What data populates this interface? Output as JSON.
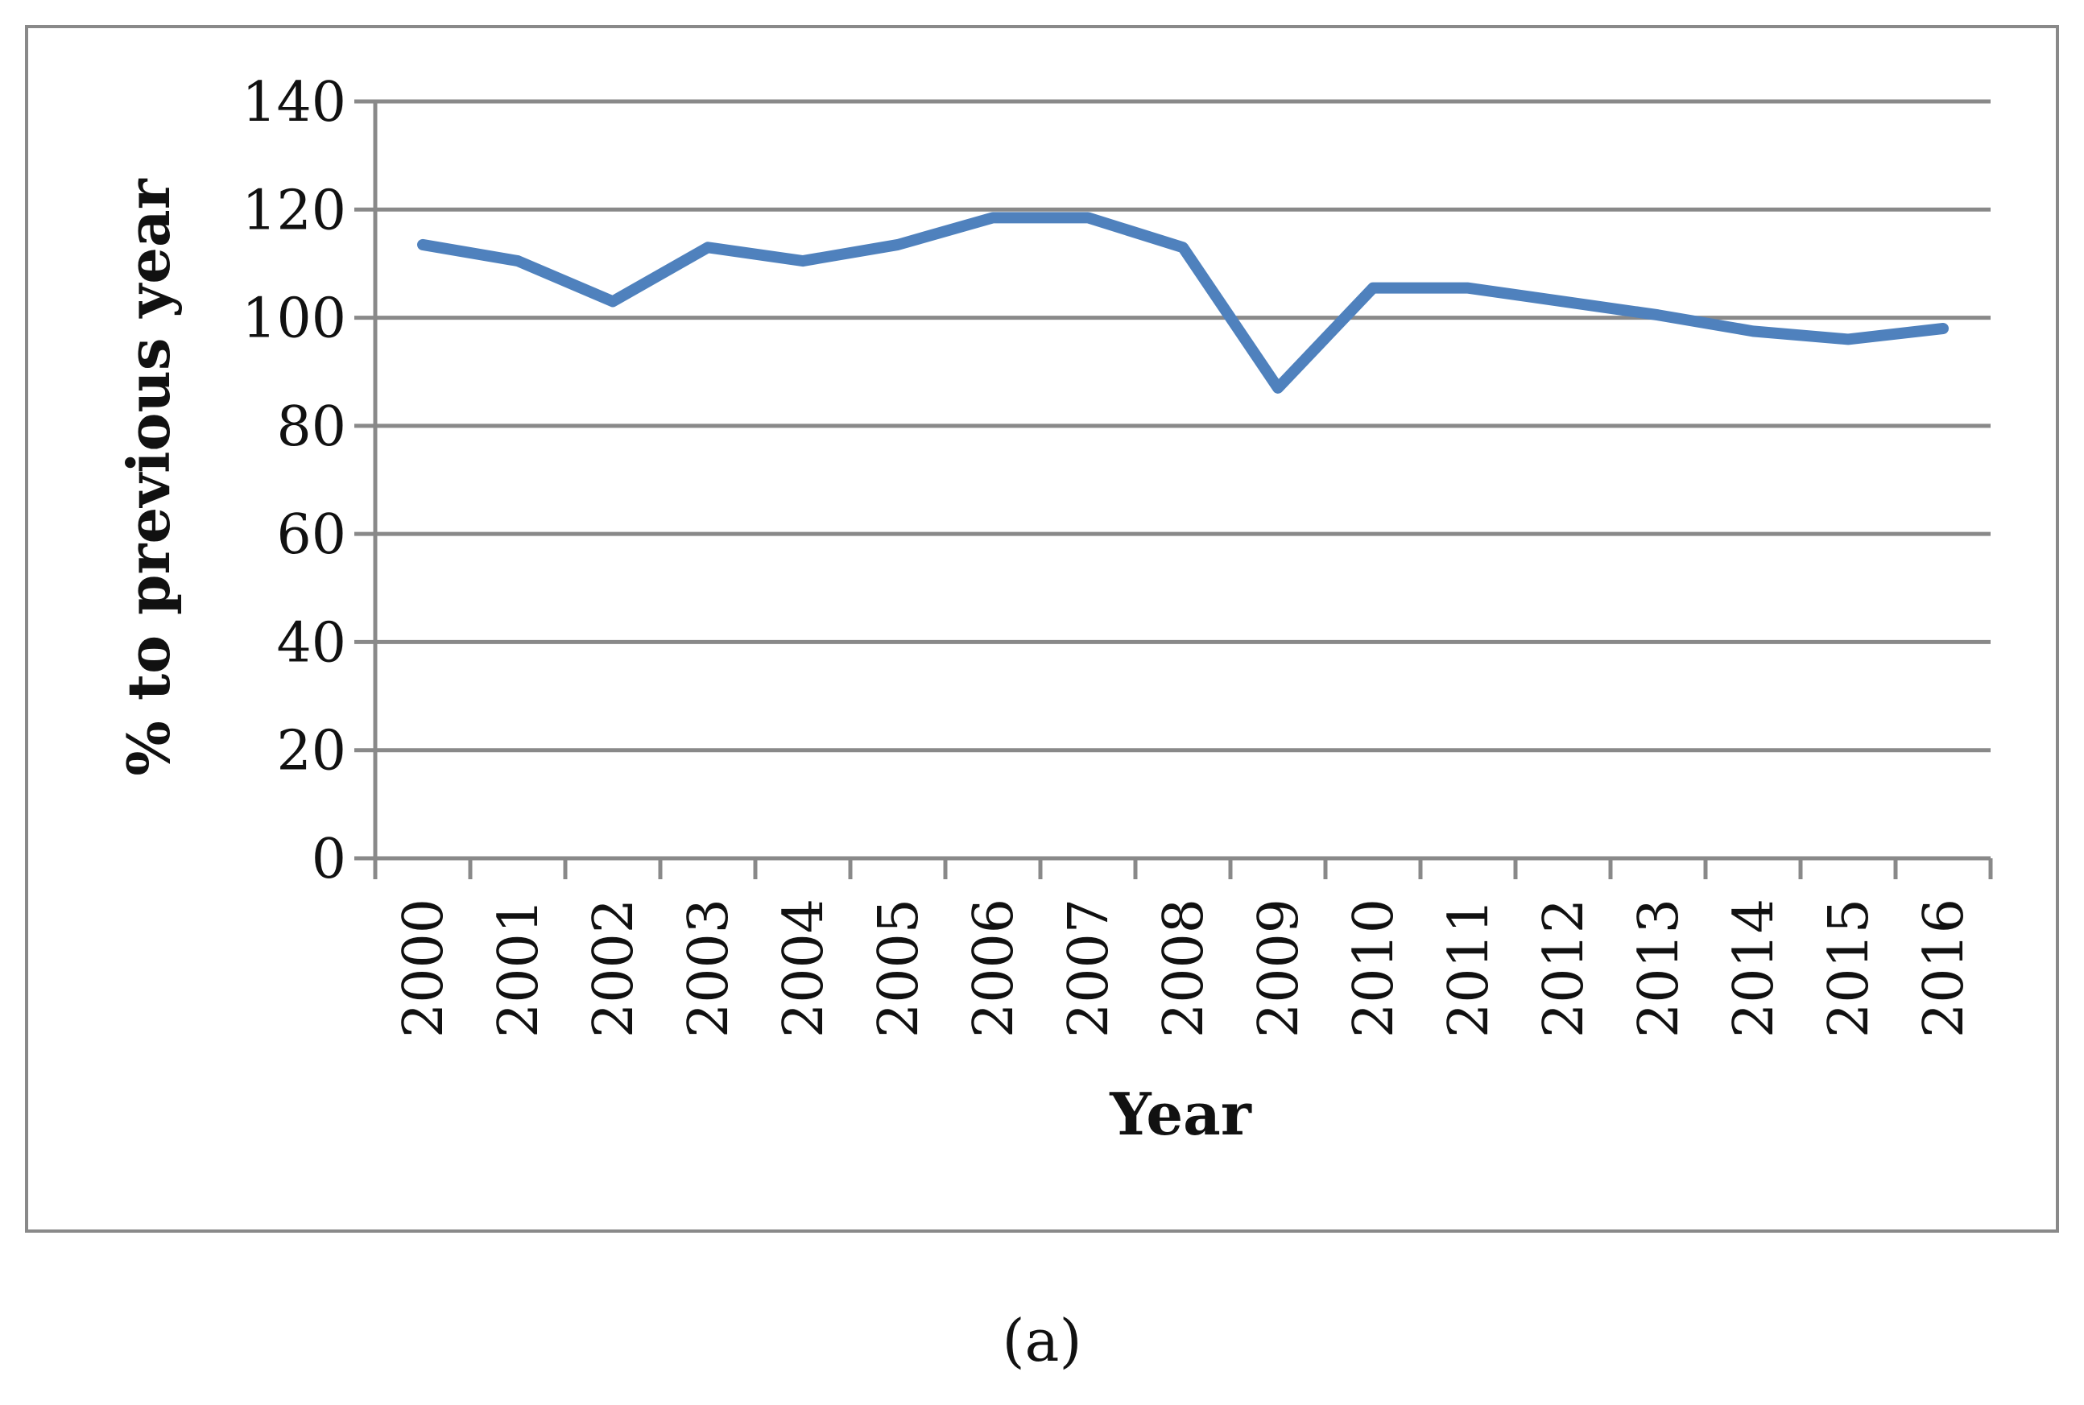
{
  "chart_data": {
    "type": "line",
    "title": "",
    "xlabel": "Year",
    "ylabel": "% to previous year",
    "ylim": [
      0,
      140
    ],
    "yticks": [
      0,
      20,
      40,
      60,
      80,
      100,
      120,
      140
    ],
    "grid": true,
    "legend": "none",
    "categories": [
      "2000",
      "2001",
      "2002",
      "2003",
      "2004",
      "2005",
      "2006",
      "2007",
      "2008",
      "2009",
      "2010",
      "2011",
      "2012",
      "2013",
      "2014",
      "2015",
      "2016"
    ],
    "series": [
      {
        "values": [
          113.5,
          110.5,
          103,
          113,
          110.5,
          113.5,
          118.5,
          118.5,
          113,
          87,
          105.5,
          105.5,
          103,
          100.5,
          97.5,
          96,
          98
        ],
        "color": "#4f81bd"
      }
    ],
    "colors": {
      "grid": "#898989",
      "frame": "#898989",
      "line": "#4f81bd"
    }
  },
  "caption": "(a)"
}
